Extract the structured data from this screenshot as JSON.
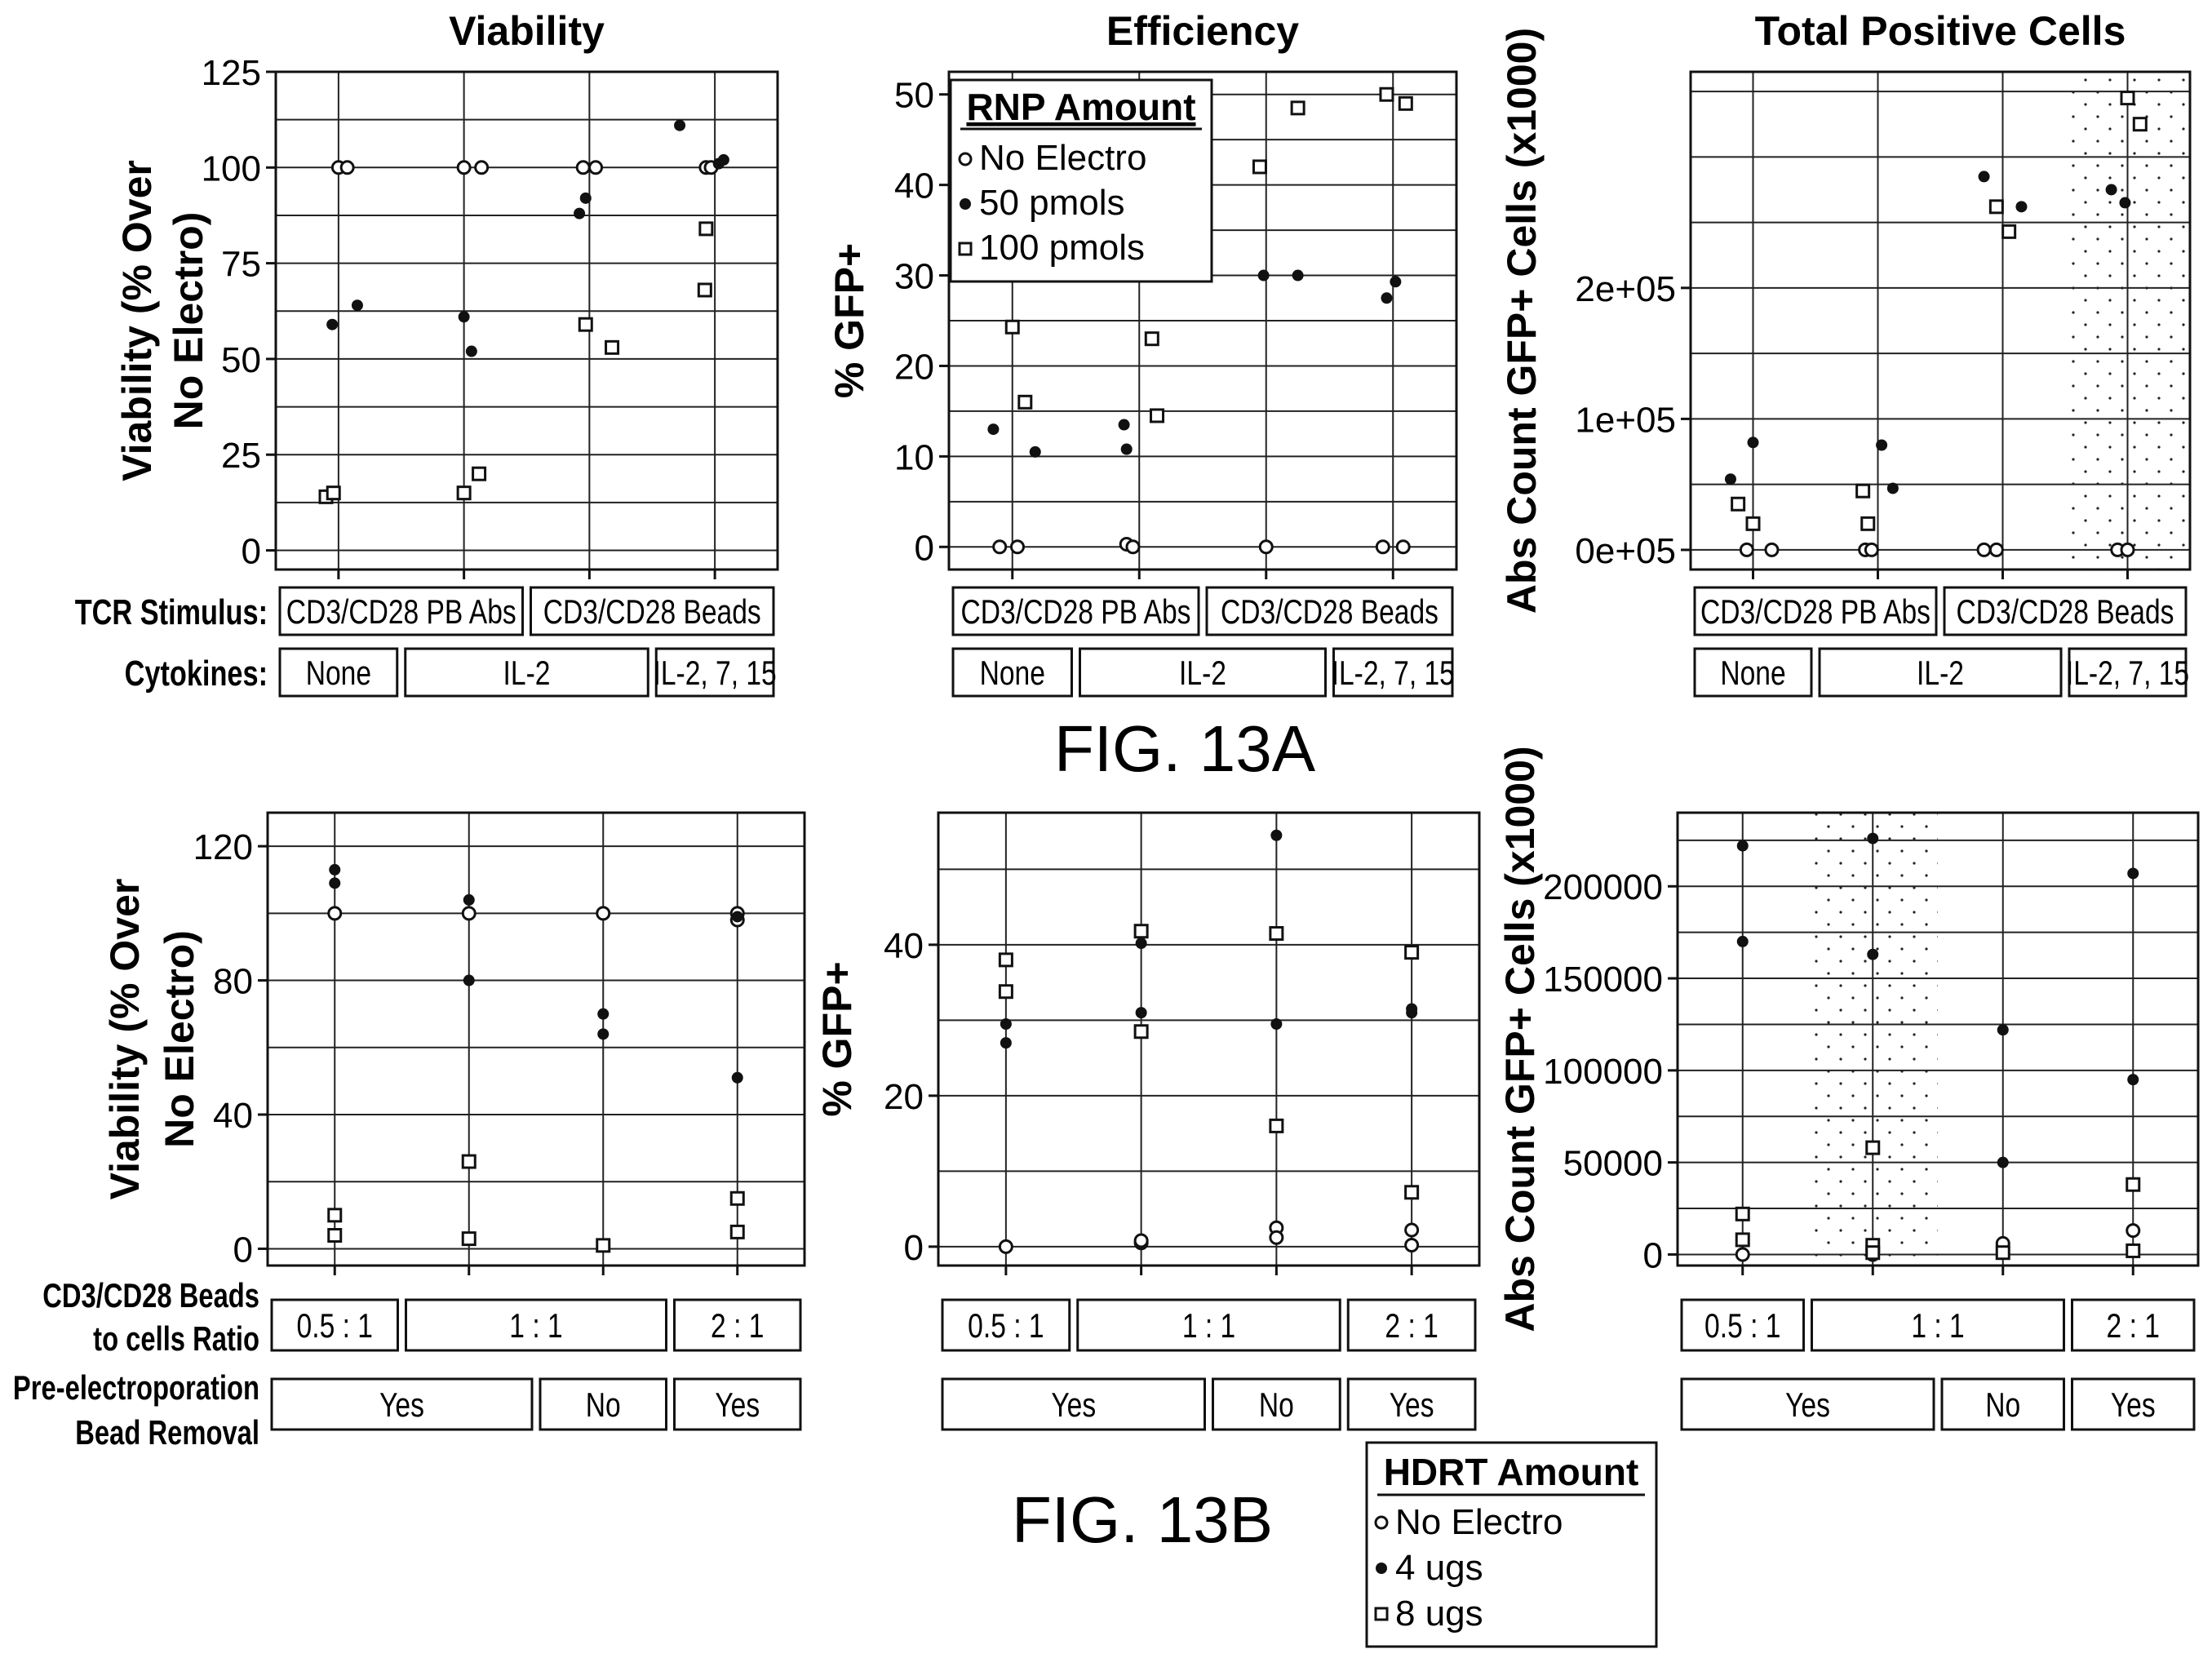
{
  "figure_labels": {
    "a": "FIG. 13A",
    "b": "FIG. 13B"
  },
  "legends": {
    "rnp": {
      "title": "RNP Amount",
      "items": [
        "No Electro",
        "50 pmols",
        "100 pmols"
      ]
    },
    "hdrt": {
      "title": "HDRT Amount",
      "items": [
        "No Electro",
        "4 ugs",
        "8 ugs"
      ]
    }
  },
  "row_labels": {
    "a": [
      "TCR Stimulus:",
      "Cytokines:"
    ],
    "b": [
      "CD3/CD28 Beads",
      "to cells Ratio",
      "Pre-electroporation",
      "Bead Removal"
    ]
  },
  "conditions_a": {
    "row1": [
      {
        "label": "CD3/CD28 PB Abs",
        "span": [
          0,
          2
        ]
      },
      {
        "label": "CD3/CD28 Beads",
        "span": [
          2,
          4
        ]
      }
    ],
    "row2": [
      {
        "label": "None",
        "span": [
          0,
          1
        ]
      },
      {
        "label": "IL-2",
        "span": [
          1,
          3
        ]
      },
      {
        "label": "IL-2, 7, 15",
        "span": [
          3,
          4
        ]
      }
    ]
  },
  "conditions_b": {
    "row1": [
      {
        "label": "0.5 : 1",
        "span": [
          0,
          1
        ]
      },
      {
        "label": "1 : 1",
        "span": [
          1,
          3
        ]
      },
      {
        "label": "2 : 1",
        "span": [
          3,
          4
        ]
      }
    ],
    "row2": [
      {
        "label": "Yes",
        "span": [
          0,
          2
        ]
      },
      {
        "label": "No",
        "span": [
          2,
          3
        ]
      },
      {
        "label": "Yes",
        "span": [
          3,
          4
        ]
      }
    ]
  },
  "chart_data": [
    {
      "id": "a1",
      "type": "scatter",
      "title": "Viability",
      "ylabel": [
        "Viability (% Over",
        "No Electro)"
      ],
      "ylim": [
        -5,
        125
      ],
      "yticks": [
        0,
        25,
        50,
        75,
        100,
        125
      ],
      "ytick_labels": [
        "0",
        "25",
        "50",
        "75",
        "100",
        "125"
      ],
      "ygrid": [
        0,
        12.5,
        25,
        37.5,
        50,
        62.5,
        75,
        87.5,
        100,
        112.5,
        125
      ],
      "categories": 4,
      "xlim": [
        0.5,
        4.5
      ],
      "vlines": [
        1,
        2,
        3,
        4
      ],
      "shade": null,
      "series": [
        {
          "marker": "open-circle",
          "points": [
            [
              1.0,
              100
            ],
            [
              1.07,
              100
            ],
            [
              2.0,
              100
            ],
            [
              2.14,
              100
            ],
            [
              2.95,
              100
            ],
            [
              3.05,
              100
            ],
            [
              3.93,
              100
            ],
            [
              3.97,
              100
            ]
          ]
        },
        {
          "marker": "dot",
          "points": [
            [
              0.95,
              59
            ],
            [
              1.15,
              64
            ],
            [
              2.0,
              61
            ],
            [
              2.06,
              52
            ],
            [
              2.92,
              88
            ],
            [
              2.97,
              92
            ],
            [
              3.72,
              111
            ],
            [
              4.03,
              101
            ],
            [
              4.07,
              102
            ]
          ]
        },
        {
          "marker": "square",
          "points": [
            [
              0.9,
              14
            ],
            [
              0.96,
              15
            ],
            [
              2.0,
              15
            ],
            [
              2.12,
              20
            ],
            [
              2.97,
              59
            ],
            [
              3.18,
              53
            ],
            [
              3.92,
              68
            ],
            [
              3.93,
              84
            ]
          ]
        }
      ]
    },
    {
      "id": "a2",
      "type": "scatter",
      "title": "Efficiency",
      "ylabel": [
        "% GFP+"
      ],
      "ylim": [
        -2.5,
        52.5
      ],
      "yticks": [
        0,
        10,
        20,
        30,
        40,
        50
      ],
      "ytick_labels": [
        "0",
        "10",
        "20",
        "30",
        "40",
        "50"
      ],
      "ygrid": [
        0,
        5,
        10,
        15,
        20,
        25,
        30,
        35,
        40,
        45,
        50
      ],
      "categories": 4,
      "xlim": [
        0.5,
        4.5
      ],
      "vlines": [
        1,
        2,
        3,
        4
      ],
      "shade": null,
      "series": [
        {
          "marker": "open-circle",
          "points": [
            [
              0.9,
              0
            ],
            [
              1.04,
              0
            ],
            [
              1.9,
              0.3
            ],
            [
              1.95,
              0
            ],
            [
              3.0,
              0
            ],
            [
              3.92,
              0
            ],
            [
              4.08,
              0
            ]
          ]
        },
        {
          "marker": "dot",
          "points": [
            [
              0.85,
              13
            ],
            [
              1.18,
              10.5
            ],
            [
              1.88,
              13.5
            ],
            [
              1.9,
              10.8
            ],
            [
              2.98,
              30
            ],
            [
              3.25,
              30
            ],
            [
              3.95,
              27.5
            ],
            [
              4.02,
              29.3
            ]
          ]
        },
        {
          "marker": "square",
          "points": [
            [
              1.0,
              24.3
            ],
            [
              1.1,
              16
            ],
            [
              2.1,
              23
            ],
            [
              2.14,
              14.5
            ],
            [
              2.95,
              42
            ],
            [
              3.25,
              48.5
            ],
            [
              3.95,
              50
            ],
            [
              4.1,
              49
            ]
          ]
        }
      ]
    },
    {
      "id": "a3",
      "type": "scatter",
      "title": "Total Positive Cells",
      "ylabel": [
        "Abs Count GFP+ Cells (x1000)"
      ],
      "ylim": [
        -15000,
        365000
      ],
      "yticks": [
        0,
        100000,
        200000
      ],
      "ytick_labels": [
        "0e+05",
        "1e+05",
        "2e+05"
      ],
      "ygrid": [
        0,
        50000,
        100000,
        150000,
        200000,
        250000,
        300000,
        350000
      ],
      "categories": 4,
      "xlim": [
        0.5,
        4.5
      ],
      "vlines": [
        1,
        2,
        3,
        4
      ],
      "shade": [
        3.5,
        4.5
      ],
      "series": [
        {
          "marker": "open-circle",
          "points": [
            [
              0.95,
              0
            ],
            [
              1.15,
              0
            ],
            [
              1.9,
              0
            ],
            [
              1.95,
              0
            ],
            [
              2.85,
              0
            ],
            [
              2.95,
              0
            ],
            [
              3.92,
              0
            ],
            [
              4.0,
              0
            ]
          ]
        },
        {
          "marker": "dot",
          "points": [
            [
              0.82,
              54000
            ],
            [
              1.0,
              82000
            ],
            [
              2.03,
              80000
            ],
            [
              2.12,
              47000
            ],
            [
              2.85,
              285000
            ],
            [
              3.15,
              262000
            ],
            [
              3.87,
              275000
            ],
            [
              3.98,
              265000
            ]
          ]
        },
        {
          "marker": "square",
          "points": [
            [
              0.88,
              35000
            ],
            [
              1.0,
              20000
            ],
            [
              1.88,
              45000
            ],
            [
              1.92,
              20000
            ],
            [
              2.95,
              262000
            ],
            [
              3.05,
              243000
            ],
            [
              4.0,
              345000
            ],
            [
              4.1,
              325000
            ]
          ]
        }
      ]
    },
    {
      "id": "b1",
      "type": "scatter",
      "title": "",
      "ylabel": [
        "Viability (% Over",
        "No Electro)"
      ],
      "ylim": [
        -5,
        130
      ],
      "yticks": [
        0,
        40,
        80,
        120
      ],
      "ytick_labels": [
        "0",
        "40",
        "80",
        "120"
      ],
      "ygrid": [
        0,
        20,
        40,
        60,
        80,
        100,
        120
      ],
      "categories": 4,
      "xlim": [
        0.5,
        4.5
      ],
      "vlines": [
        1,
        2,
        3,
        4
      ],
      "shade": null,
      "series": [
        {
          "marker": "open-circle",
          "points": [
            [
              1.0,
              100
            ],
            [
              2.0,
              100
            ],
            [
              3.0,
              100
            ],
            [
              4.0,
              100
            ],
            [
              4.0,
              98
            ]
          ]
        },
        {
          "marker": "dot",
          "points": [
            [
              1.0,
              113
            ],
            [
              1.0,
              109
            ],
            [
              2.0,
              104
            ],
            [
              2.0,
              80
            ],
            [
              3.0,
              70
            ],
            [
              3.0,
              64
            ],
            [
              4.0,
              51
            ],
            [
              4.0,
              99
            ]
          ]
        },
        {
          "marker": "square",
          "points": [
            [
              1.0,
              10
            ],
            [
              1.0,
              4
            ],
            [
              2.0,
              26
            ],
            [
              2.0,
              3
            ],
            [
              3.0,
              1
            ],
            [
              4.0,
              15
            ],
            [
              4.0,
              5
            ]
          ]
        }
      ]
    },
    {
      "id": "b2",
      "type": "scatter",
      "title": "",
      "ylabel": [
        "% GFP+"
      ],
      "ylim": [
        -2.5,
        57.5
      ],
      "yticks": [
        0,
        20,
        40
      ],
      "ytick_labels": [
        "0",
        "20",
        "40"
      ],
      "ygrid": [
        0,
        10,
        20,
        30,
        40,
        50
      ],
      "categories": 4,
      "xlim": [
        0.5,
        4.5
      ],
      "vlines": [
        1,
        2,
        3,
        4
      ],
      "shade": null,
      "series": [
        {
          "marker": "open-circle",
          "points": [
            [
              1.0,
              0
            ],
            [
              2.0,
              0.5
            ],
            [
              2.0,
              0.8
            ],
            [
              3.0,
              2.5
            ],
            [
              3.0,
              1.2
            ],
            [
              4.0,
              2.2
            ],
            [
              4.0,
              0.2
            ]
          ]
        },
        {
          "marker": "dot",
          "points": [
            [
              1.0,
              29.5
            ],
            [
              1.0,
              27
            ],
            [
              2.0,
              40.2
            ],
            [
              2.0,
              31
            ],
            [
              3.0,
              54.5
            ],
            [
              3.0,
              29.5
            ],
            [
              4.0,
              31.5
            ],
            [
              4.0,
              31
            ]
          ]
        },
        {
          "marker": "square",
          "points": [
            [
              1.0,
              38
            ],
            [
              1.0,
              33.8
            ],
            [
              2.0,
              41.8
            ],
            [
              2.0,
              28.5
            ],
            [
              3.0,
              41.5
            ],
            [
              3.0,
              16
            ],
            [
              4.0,
              39
            ],
            [
              4.0,
              7.2
            ]
          ]
        }
      ]
    },
    {
      "id": "b3",
      "type": "scatter",
      "title": "",
      "ylabel": [
        "Abs Count GFP+ Cells (x1000)"
      ],
      "ylim": [
        -6000,
        240000
      ],
      "yticks": [
        0,
        50000,
        100000,
        150000,
        200000
      ],
      "ytick_labels": [
        "0",
        "50000",
        "100000",
        "150000",
        "200000"
      ],
      "ygrid": [
        0,
        25000,
        50000,
        75000,
        100000,
        125000,
        150000,
        175000,
        200000,
        225000
      ],
      "categories": 4,
      "xlim": [
        0.5,
        4.5
      ],
      "vlines": [
        1,
        2,
        3,
        4
      ],
      "shade": [
        1.5,
        2.5
      ],
      "series": [
        {
          "marker": "open-circle",
          "points": [
            [
              1.0,
              0
            ],
            [
              2.0,
              0
            ],
            [
              3.0,
              6000
            ],
            [
              4.0,
              13000
            ]
          ]
        },
        {
          "marker": "dot",
          "points": [
            [
              1.0,
              222000
            ],
            [
              1.0,
              170000
            ],
            [
              2.0,
              226000
            ],
            [
              2.0,
              163000
            ],
            [
              3.0,
              122000
            ],
            [
              3.0,
              50000
            ],
            [
              4.0,
              207000
            ],
            [
              4.0,
              95000
            ]
          ]
        },
        {
          "marker": "square",
          "points": [
            [
              1.0,
              22000
            ],
            [
              1.0,
              8000
            ],
            [
              2.0,
              58000
            ],
            [
              2.0,
              5000
            ],
            [
              2.0,
              1000
            ],
            [
              3.0,
              1000
            ],
            [
              4.0,
              38000
            ],
            [
              4.0,
              2000
            ]
          ]
        }
      ]
    }
  ]
}
